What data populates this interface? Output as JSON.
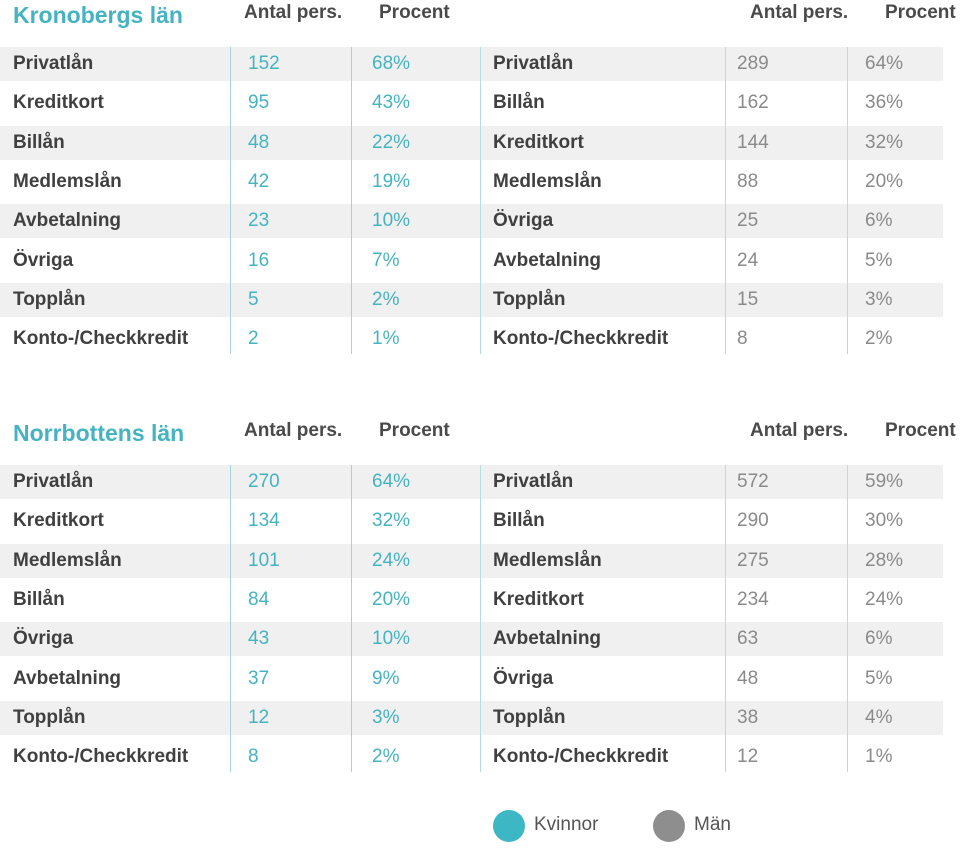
{
  "colors": {
    "women": "#45b3c1",
    "men": "#8a8a8a"
  },
  "sections": [
    {
      "title": "Kronobergs län",
      "women_headers": {
        "count": "Antal pers.",
        "pct": "Procent"
      },
      "men_headers": {
        "count": "Antal pers.",
        "pct": "Procent"
      },
      "women": [
        {
          "label": "Privatlån",
          "count": "152",
          "pct": "68%"
        },
        {
          "label": "Kreditkort",
          "count": "95",
          "pct": "43%"
        },
        {
          "label": "Billån",
          "count": "48",
          "pct": "22%"
        },
        {
          "label": "Medlemslån",
          "count": "42",
          "pct": "19%"
        },
        {
          "label": "Avbetalning",
          "count": "23",
          "pct": "10%"
        },
        {
          "label": "Övriga",
          "count": "16",
          "pct": "7%"
        },
        {
          "label": "Topplån",
          "count": "5",
          "pct": "2%"
        },
        {
          "label": "Konto-/Checkkredit",
          "count": "2",
          "pct": "1%"
        }
      ],
      "men": [
        {
          "label": "Privatlån",
          "count": "289",
          "pct": "64%"
        },
        {
          "label": "Billån",
          "count": "162",
          "pct": "36%"
        },
        {
          "label": "Kreditkort",
          "count": "144",
          "pct": "32%"
        },
        {
          "label": "Medlemslån",
          "count": "88",
          "pct": "20%"
        },
        {
          "label": "Övriga",
          "count": "25",
          "pct": "6%"
        },
        {
          "label": "Avbetalning",
          "count": "24",
          "pct": "5%"
        },
        {
          "label": "Topplån",
          "count": "15",
          "pct": "3%"
        },
        {
          "label": "Konto-/Checkkredit",
          "count": "8",
          "pct": "2%"
        }
      ]
    },
    {
      "title": "Norrbottens län",
      "women_headers": {
        "count": "Antal pers.",
        "pct": "Procent"
      },
      "men_headers": {
        "count": "Antal pers.",
        "pct": "Procent"
      },
      "women": [
        {
          "label": "Privatlån",
          "count": "270",
          "pct": "64%"
        },
        {
          "label": "Kreditkort",
          "count": "134",
          "pct": "32%"
        },
        {
          "label": "Medlemslån",
          "count": "101",
          "pct": "24%"
        },
        {
          "label": "Billån",
          "count": "84",
          "pct": "20%"
        },
        {
          "label": "Övriga",
          "count": "43",
          "pct": "10%"
        },
        {
          "label": "Avbetalning",
          "count": "37",
          "pct": "9%"
        },
        {
          "label": "Topplån",
          "count": "12",
          "pct": "3%"
        },
        {
          "label": "Konto-/Checkkredit",
          "count": "8",
          "pct": "2%"
        }
      ],
      "men": [
        {
          "label": "Privatlån",
          "count": "572",
          "pct": "59%"
        },
        {
          "label": "Billån",
          "count": "290",
          "pct": "30%"
        },
        {
          "label": "Medlemslån",
          "count": "275",
          "pct": "28%"
        },
        {
          "label": "Kreditkort",
          "count": "234",
          "pct": "24%"
        },
        {
          "label": "Avbetalning",
          "count": "63",
          "pct": "6%"
        },
        {
          "label": "Övriga",
          "count": "48",
          "pct": "5%"
        },
        {
          "label": "Topplån",
          "count": "38",
          "pct": "4%"
        },
        {
          "label": "Konto-/Checkkredit",
          "count": "12",
          "pct": "1%"
        }
      ]
    }
  ],
  "legend": {
    "women": "Kvinnor",
    "men": "Män"
  }
}
